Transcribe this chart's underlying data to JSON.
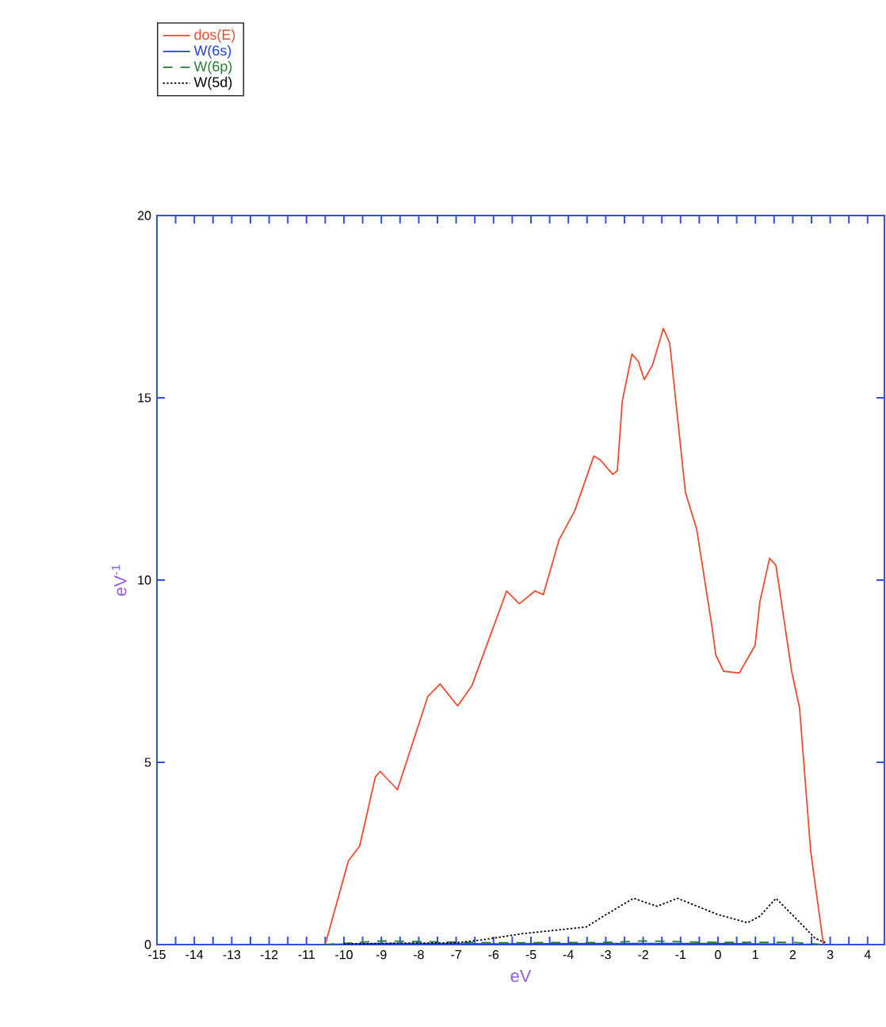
{
  "chart_data": {
    "type": "line",
    "xlabel": "eV",
    "ylabel": "eV$^{-1}$",
    "xlim": [
      -15,
      4.45
    ],
    "ylim": [
      0,
      20
    ],
    "xticks": [
      -15,
      -14,
      -13,
      -12,
      -11,
      -10,
      -9,
      -8,
      -7,
      -6,
      -5,
      -4,
      -3,
      -2,
      -1,
      0,
      1,
      2,
      3,
      4
    ],
    "yticks": [
      0,
      5,
      10,
      15,
      20
    ],
    "grid": false,
    "legend": "top left",
    "marker": "none",
    "series": [
      {
        "name": "dos(E)",
        "color": "#f04a30",
        "line_style": "solid",
        "x": [
          -10.5,
          -9.88,
          -9.58,
          -9.16,
          -9.03,
          -8.57,
          -7.76,
          -7.43,
          -6.96,
          -6.58,
          -5.65,
          -5.31,
          -4.89,
          -4.67,
          -4.25,
          -3.83,
          -3.32,
          -3.15,
          -2.81,
          -2.69,
          -2.56,
          -2.3,
          -2.13,
          -1.97,
          -1.75,
          -1.46,
          -1.29,
          -0.87,
          -0.57,
          -0.15,
          -0.06,
          0.15,
          0.57,
          0.99,
          1.12,
          1.38,
          1.55,
          1.97,
          2.18,
          2.48,
          2.82
        ],
        "values": [
          0,
          2.3,
          2.7,
          4.6,
          4.75,
          4.25,
          6.8,
          7.15,
          6.55,
          7.1,
          9.7,
          9.35,
          9.7,
          9.6,
          11.1,
          11.9,
          13.4,
          13.3,
          12.9,
          13.0,
          14.9,
          16.2,
          16.0,
          15.5,
          15.9,
          16.9,
          16.5,
          12.4,
          11.4,
          8.65,
          7.95,
          7.5,
          7.45,
          8.2,
          9.4,
          10.6,
          10.4,
          7.5,
          6.5,
          2.55,
          0
        ]
      },
      {
        "name": "W(6s)",
        "color": "#2040e0",
        "line_style": "solid",
        "x": [
          -10.5,
          -9,
          -6,
          -3,
          0,
          2.8
        ],
        "values": [
          0,
          0.03,
          0.02,
          0.03,
          0.03,
          0
        ]
      },
      {
        "name": "W(6p)",
        "color": "#208030",
        "line_style": "dashed",
        "x": [
          -10.5,
          -9,
          -6,
          -3,
          -2,
          0,
          2,
          2.8
        ],
        "values": [
          0,
          0.1,
          0.05,
          0.06,
          0.1,
          0.06,
          0.06,
          0
        ]
      },
      {
        "name": "W(5d)",
        "color": "#000000",
        "line_style": "dotted",
        "x": [
          -10,
          -7,
          -6.37,
          -5.22,
          -3.53,
          -2.98,
          -2.26,
          -1.63,
          -1.08,
          -0.02,
          0.79,
          1.12,
          1.55,
          2.1,
          2.6,
          2.9
        ],
        "values": [
          0.02,
          0.05,
          0.12,
          0.3,
          0.48,
          0.83,
          1.27,
          1.05,
          1.27,
          0.83,
          0.6,
          0.78,
          1.27,
          0.7,
          0.17,
          0.04
        ]
      }
    ]
  }
}
